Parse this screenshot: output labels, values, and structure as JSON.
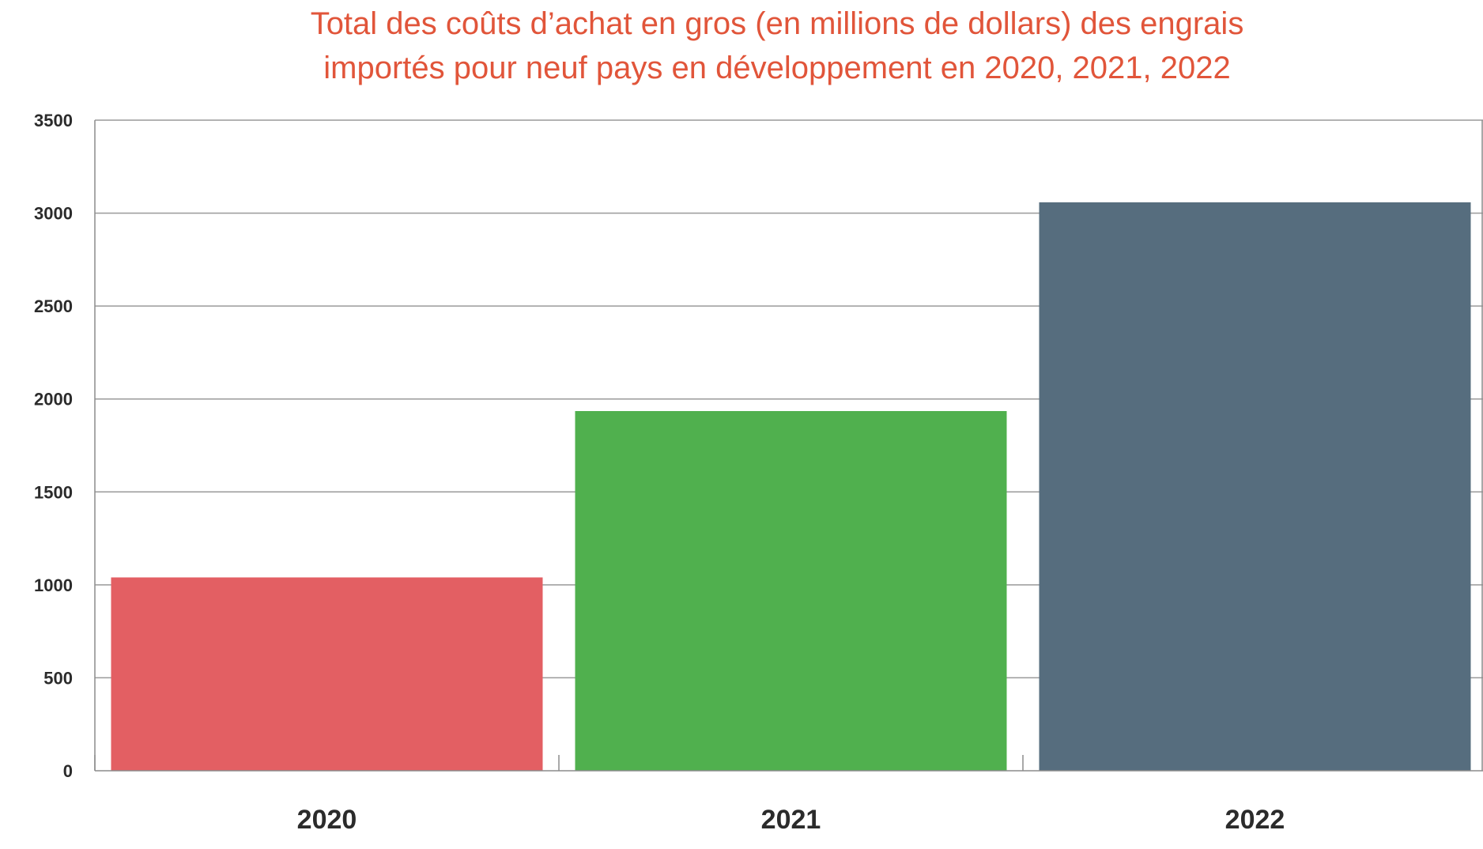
{
  "chart_data": {
    "type": "bar",
    "title": "Total des coûts d’achat en gros (en millions de dollars) des engrais importés pour neuf pays en développement en 2020, 2021, 2022",
    "title_lines": [
      "Total des coûts d’achat en gros (en millions de dollars) des engrais",
      "importés pour neuf pays en développement en 2020, 2021, 2022"
    ],
    "categories": [
      "2020",
      "2021",
      "2022"
    ],
    "values": [
      1040,
      1935,
      3058
    ],
    "colors": [
      "#E35F63",
      "#50B04E",
      "#566D7E"
    ],
    "title_color": "#E1553A",
    "xlabel": "",
    "ylabel": "",
    "ylim": [
      0,
      3500
    ],
    "yticks": [
      "0",
      "500",
      "1000",
      "1500",
      "2000",
      "2500",
      "3000",
      "3500"
    ],
    "grid": true,
    "legend": "none"
  }
}
